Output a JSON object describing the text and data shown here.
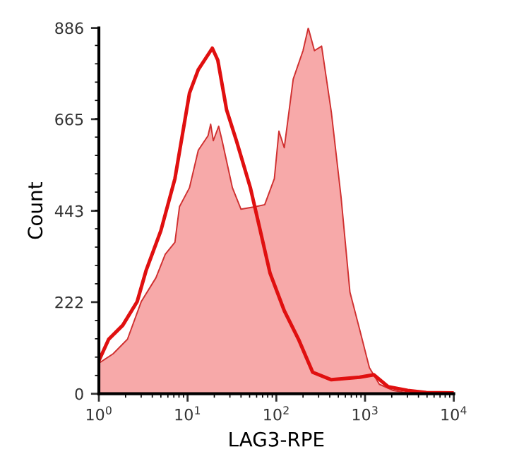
{
  "chart_data": {
    "type": "area",
    "xlabel": "LAG3-RPE",
    "ylabel": "Count",
    "log": "x",
    "xlim": [
      1,
      10000
    ],
    "ylim": [
      0,
      886
    ],
    "xticks": [
      {
        "value": 1,
        "label": "10$^{0}$"
      },
      {
        "value": 10,
        "label": "10$^{1}$"
      },
      {
        "value": 100,
        "label": "10$^{2}$"
      },
      {
        "value": 1000,
        "label": "10$^{3}$"
      },
      {
        "value": 10000,
        "label": "10$^{4}$"
      }
    ],
    "yticks": [
      0,
      222,
      443,
      665,
      886
    ],
    "grid": false,
    "legend": false,
    "series": [
      {
        "color": "#f7a9a9",
        "x": [
          1,
          1.45,
          2.1,
          3.0,
          4.4,
          5.6,
          7.2,
          8.1,
          10.5,
          13.2,
          17,
          18.2,
          19.5,
          22.4,
          24.5,
          32,
          40,
          58,
          74,
          95,
          107,
          123,
          155,
          200,
          229,
          269,
          324,
          417,
          537,
          676,
          871,
          1120,
          1450,
          2090,
          3020,
          10000
        ],
        "values": [
          74,
          97,
          132,
          223,
          281,
          338,
          367,
          453,
          499,
          590,
          625,
          653,
          613,
          648,
          613,
          499,
          447,
          453,
          458,
          521,
          636,
          596,
          762,
          831,
          886,
          831,
          842,
          682,
          476,
          246,
          155,
          63,
          23,
          8,
          2,
          0
        ]
      },
      {
        "type": "line",
        "color": "#e01010",
        "x": [
          1,
          1.29,
          1.86,
          2.7,
          3.4,
          5.0,
          7.2,
          10.5,
          13.2,
          19,
          21.9,
          27.5,
          35.5,
          51,
          66,
          85,
          123,
          178,
          257,
          417,
          871,
          1260,
          1820,
          3020,
          4900,
          10000
        ],
        "values": [
          80,
          132,
          166,
          223,
          298,
          395,
          521,
          728,
          785,
          837,
          808,
          688,
          613,
          499,
          395,
          292,
          201,
          132,
          52,
          34,
          40,
          46,
          17,
          8,
          3,
          2
        ]
      }
    ]
  }
}
